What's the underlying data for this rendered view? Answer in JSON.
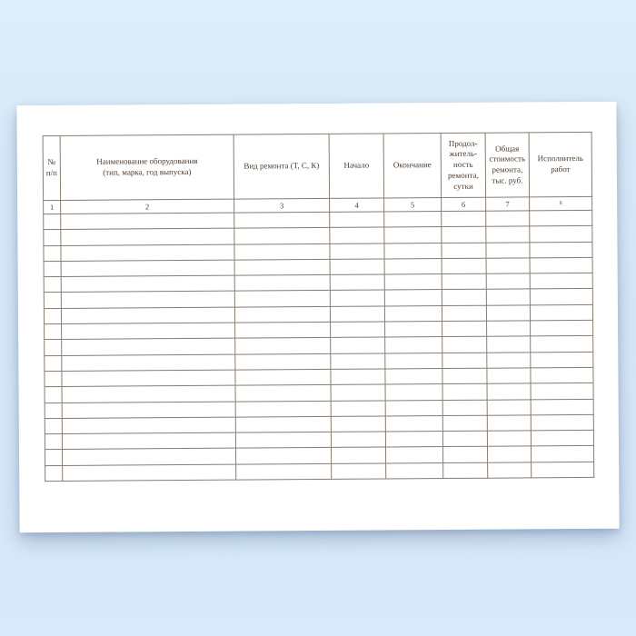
{
  "page": {
    "background_color": "#d7e9f9",
    "paper_color": "#ffffff"
  },
  "colors": {
    "table_border": "#8a7c6e",
    "text": "#4e3c2e"
  },
  "table": {
    "headers": [
      "№\nп/п",
      "Наименование оборудования\n(тип, марка, год выпуска)",
      "Вид ремонта (Т, С, К)",
      "Начало",
      "Окончание",
      "Продол-\nжитель-\nность\nремонта,\nсутки",
      "Общая\nстоимость\nремонта,\nтыс. руб.",
      "Исполнитель\nработ"
    ],
    "column_numbers": [
      "1",
      "2",
      "3",
      "4",
      "5",
      "6",
      "7",
      "8"
    ],
    "empty_row_count": 17
  }
}
